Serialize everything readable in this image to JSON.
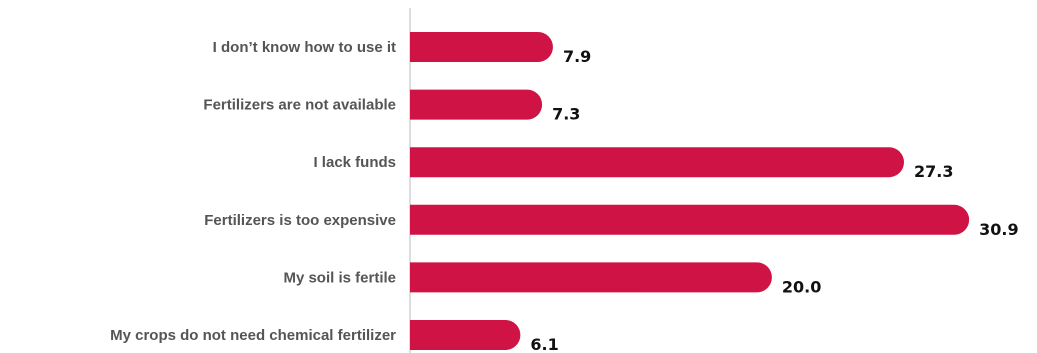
{
  "chart_data": {
    "type": "bar",
    "orientation": "horizontal",
    "title": "",
    "xlabel": "",
    "ylabel": "",
    "categories": [
      "I don’t know how to use it",
      "Fertilizers are not available",
      "I lack funds",
      "Fertilizers is too expensive",
      "My soil is fertile",
      "My crops do not need chemical fertilizer"
    ],
    "values": [
      7.9,
      7.3,
      27.3,
      30.9,
      20.0,
      6.1
    ],
    "value_labels": [
      "7.9",
      "7.3",
      "27.3",
      "30.9",
      "20.0",
      "6.1"
    ],
    "xlim": [
      0,
      31.5
    ],
    "grid": false,
    "legend": "none",
    "colors": {
      "bar": "#d01345",
      "axis": "#bbbbbb",
      "category_text": "#555555",
      "value_text": "#111111"
    }
  }
}
